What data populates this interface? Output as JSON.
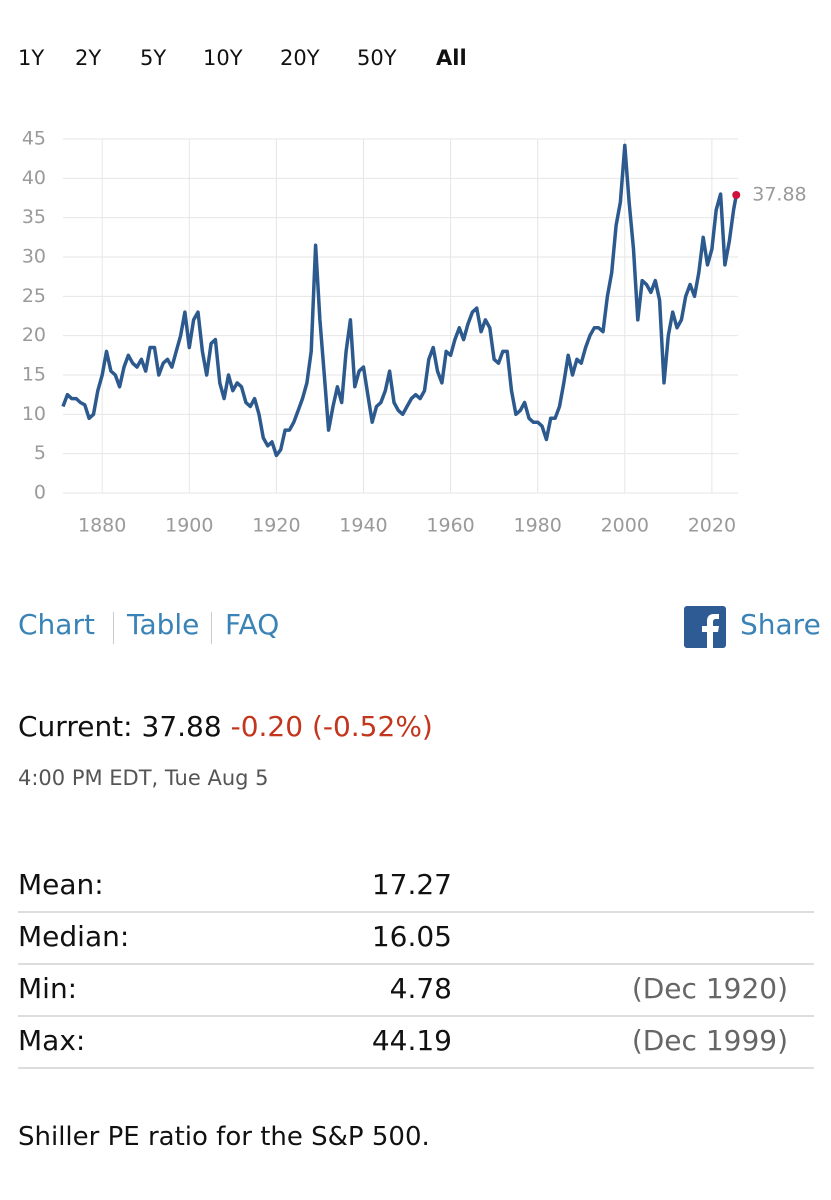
{
  "ranges": [
    "1Y",
    "2Y",
    "5Y",
    "10Y",
    "20Y",
    "50Y",
    "All"
  ],
  "chart_data": {
    "type": "line",
    "x": [
      1871,
      1872,
      1873,
      1874,
      1875,
      1876,
      1877,
      1878,
      1879,
      1880,
      1881,
      1882,
      1883,
      1884,
      1885,
      1886,
      1887,
      1888,
      1889,
      1890,
      1891,
      1892,
      1893,
      1894,
      1895,
      1896,
      1897,
      1898,
      1899,
      1900,
      1901,
      1902,
      1903,
      1904,
      1905,
      1906,
      1907,
      1908,
      1909,
      1910,
      1911,
      1912,
      1913,
      1914,
      1915,
      1916,
      1917,
      1918,
      1919,
      1920,
      1921,
      1922,
      1923,
      1924,
      1925,
      1926,
      1927,
      1928,
      1929,
      1930,
      1931,
      1932,
      1933,
      1934,
      1935,
      1936,
      1937,
      1938,
      1939,
      1940,
      1941,
      1942,
      1943,
      1944,
      1945,
      1946,
      1947,
      1948,
      1949,
      1950,
      1951,
      1952,
      1953,
      1954,
      1955,
      1956,
      1957,
      1958,
      1959,
      1960,
      1961,
      1962,
      1963,
      1964,
      1965,
      1966,
      1967,
      1968,
      1969,
      1970,
      1971,
      1972,
      1973,
      1974,
      1975,
      1976,
      1977,
      1978,
      1979,
      1980,
      1981,
      1982,
      1983,
      1984,
      1985,
      1986,
      1987,
      1988,
      1989,
      1990,
      1991,
      1992,
      1993,
      1994,
      1995,
      1996,
      1997,
      1998,
      1999,
      2000,
      2001,
      2002,
      2003,
      2004,
      2005,
      2006,
      2007,
      2008,
      2009,
      2010,
      2011,
      2012,
      2013,
      2014,
      2015,
      2016,
      2017,
      2018,
      2019,
      2020,
      2021,
      2022,
      2023,
      2024,
      2025,
      2025.6
    ],
    "series": [
      {
        "name": "Shiller PE",
        "color": "#2d5a8e",
        "values": [
          11,
          12.5,
          12,
          12,
          11.5,
          11.2,
          9.5,
          10,
          13,
          15,
          18,
          15.5,
          15,
          13.5,
          16,
          17.5,
          16.5,
          16,
          17,
          15.5,
          18.5,
          18.5,
          15,
          16.5,
          17,
          16,
          18,
          20,
          23,
          18.5,
          22,
          23,
          18,
          15,
          19,
          19.5,
          14,
          12,
          15,
          13,
          14,
          13.5,
          11.5,
          11,
          12,
          10,
          7,
          6,
          6.5,
          4.78,
          5.5,
          8,
          8,
          9,
          10.5,
          12,
          14,
          18,
          31.5,
          22,
          15,
          8,
          11,
          13.5,
          11.5,
          18,
          22,
          13.5,
          15.5,
          16,
          12.5,
          9,
          11,
          11.5,
          13,
          15.5,
          11.5,
          10.5,
          10,
          11,
          12,
          12.5,
          12,
          13,
          17,
          18.5,
          15.5,
          14,
          18,
          17.5,
          19.5,
          21,
          19.5,
          21.5,
          23,
          23.5,
          20.5,
          22,
          21,
          17,
          16.5,
          18,
          18,
          13,
          10,
          10.5,
          11.5,
          9.5,
          9,
          9,
          8.5,
          6.8,
          9.5,
          9.5,
          11,
          14,
          17.5,
          15,
          17,
          16.5,
          18.5,
          20,
          21,
          21,
          20.5,
          25,
          28,
          34,
          37,
          44.19,
          37,
          31,
          22,
          27,
          26.5,
          25.5,
          27,
          24.5,
          14,
          20,
          23,
          21,
          22,
          25,
          26.5,
          25,
          28,
          32.5,
          29,
          31,
          36,
          38,
          29,
          32,
          36,
          37.88
        ]
      }
    ],
    "end_label": "37.88",
    "end_color": "#d0103a",
    "xlim": [
      1871,
      2026
    ],
    "xticks": [
      1880,
      1900,
      1920,
      1940,
      1960,
      1980,
      2000,
      2020
    ],
    "ylim": [
      0,
      45
    ],
    "yticks": [
      0,
      5,
      10,
      15,
      20,
      25,
      30,
      35,
      40,
      45
    ],
    "grid": true
  },
  "tabs": [
    "Chart",
    "Table",
    "FAQ"
  ],
  "share": "Share",
  "current": {
    "label": "Current:",
    "value": "37.88",
    "change": "-0.20 (-0.52%)",
    "time": "4:00 PM EDT, Tue Aug 5"
  },
  "stats": [
    [
      "Mean:",
      "17.27",
      ""
    ],
    [
      "Median:",
      "16.05",
      ""
    ],
    [
      "Min:",
      "4.78",
      "(Dec 1920)"
    ],
    [
      "Max:",
      "44.19",
      "(Dec 1999)"
    ]
  ],
  "footer": "Shiller PE ratio for the S&P 500."
}
